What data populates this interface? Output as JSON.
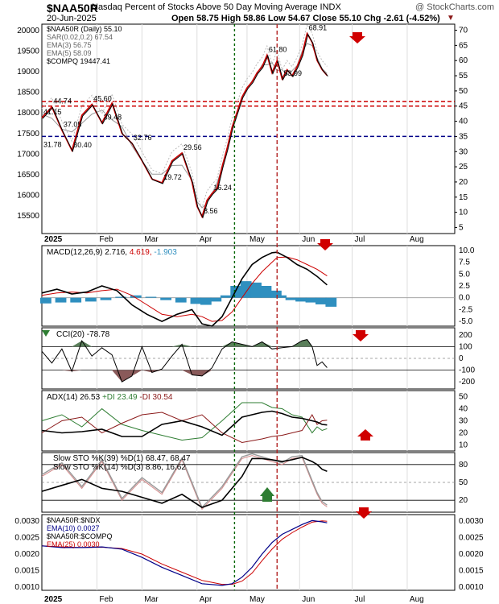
{
  "header": {
    "symbol": "$NAA50R",
    "description": "Nasdaq Percent of Stocks Above 50 Day Moving Average INDX",
    "watermark": "@ StockCharts.com",
    "date": "20-Jun-2025",
    "ohlc_text": "Open 58.75  High 58.86  Low 54.67  Close 55.10  Chg -2.61 (-4.52%)",
    "chg_arrow": "▼"
  },
  "x_axis": {
    "labels": [
      "2025",
      "Feb",
      "Mar",
      "Apr",
      "May",
      "Jun",
      "Jul",
      "Aug"
    ],
    "label_day": [
      0,
      22,
      40,
      62,
      82,
      103,
      124,
      146
    ],
    "total_days": 165
  },
  "vlines": [
    {
      "day": 77,
      "color": "#006400",
      "style": "dotted"
    },
    {
      "day": 94,
      "color": "#b22222",
      "style": "dashed"
    }
  ],
  "colors": {
    "red": "#cc0000",
    "black": "#000000",
    "grey": "#999999",
    "blue": "#000088",
    "teal": "#2f8fbf",
    "green": "#2e7d32",
    "maroon": "#8b1a1a"
  },
  "chart_data": [
    {
      "type": "line",
      "panel": "price",
      "series_name": "$NAA50R (Daily) 55.10",
      "legend": [
        "$NAA50R (Daily) 55.10",
        "SAR(0.02,0.2) 67.54",
        "EMA(3) 56.75",
        "EMA(5) 58.09",
        "$COMPQ 19447.41"
      ],
      "y_left_ticks": [
        "20000",
        "19500",
        "19000",
        "18500",
        "18000",
        "17500",
        "17000",
        "16500",
        "16000",
        "15500"
      ],
      "y_right_ticks": [
        "70",
        "65",
        "60",
        "55",
        "50",
        "45",
        "40",
        "35",
        "30",
        "25",
        "20",
        "15",
        "10",
        "5"
      ],
      "ylim": [
        3,
        72
      ],
      "x": [
        0,
        4,
        8,
        12,
        16,
        20,
        24,
        28,
        32,
        36,
        40,
        44,
        48,
        52,
        56,
        60,
        62,
        64,
        66,
        68,
        70,
        72,
        74,
        76,
        78,
        80,
        82,
        84,
        86,
        88,
        90,
        92,
        94,
        96,
        98,
        100,
        102,
        104,
        106,
        108,
        110,
        112,
        114
      ],
      "y": [
        41.15,
        44.74,
        37.05,
        30.4,
        42,
        45.6,
        39.48,
        46,
        36,
        32.76,
        27,
        21,
        19.72,
        27,
        29.56,
        20,
        12,
        8.56,
        14,
        16.24,
        18,
        25,
        31,
        38,
        43,
        48,
        51,
        53,
        56,
        58,
        61.8,
        56,
        60,
        53.99,
        57,
        55,
        58,
        62,
        68.91,
        66,
        60,
        57,
        55.1
      ],
      "hlines": [
        {
          "value": 46.5,
          "color": "#cc0000"
        },
        {
          "value": 45,
          "color": "#cc0000"
        },
        {
          "value": 35,
          "color": "#000088"
        }
      ],
      "annotations": [
        {
          "text": "41.15",
          "x": 0,
          "y": 41.15
        },
        {
          "text": "44.74",
          "x": 4,
          "y": 44.74
        },
        {
          "text": "37.05",
          "x": 8,
          "y": 37.05
        },
        {
          "text": "31.78",
          "x": 0,
          "y": 30.5
        },
        {
          "text": "30.40",
          "x": 12,
          "y": 30.4
        },
        {
          "text": "45.60",
          "x": 20,
          "y": 45.6
        },
        {
          "text": "39.48",
          "x": 24,
          "y": 39.48
        },
        {
          "text": "32.76",
          "x": 36,
          "y": 32.76
        },
        {
          "text": "29.56",
          "x": 56,
          "y": 29.56
        },
        {
          "text": "19.72",
          "x": 48,
          "y": 19.72
        },
        {
          "text": "8.56",
          "x": 64,
          "y": 8.56
        },
        {
          "text": "16.24",
          "x": 68,
          "y": 16.24
        },
        {
          "text": "61.80",
          "x": 90,
          "y": 61.8
        },
        {
          "text": "53.99",
          "x": 96,
          "y": 53.99
        },
        {
          "text": "68.91",
          "x": 106,
          "y": 68.91
        }
      ]
    },
    {
      "type": "line",
      "panel": "macd",
      "legend": [
        "MACD(12,26,9) 2.716",
        "4.619",
        "-1.903"
      ],
      "y_right_ticks": [
        "10.0",
        "7.5",
        "5.0",
        "2.5",
        "0.0",
        "-2.5",
        "-5.0"
      ],
      "ylim": [
        -6,
        11
      ],
      "x": [
        0,
        6,
        12,
        18,
        24,
        30,
        36,
        42,
        48,
        54,
        60,
        64,
        68,
        72,
        76,
        80,
        84,
        88,
        92,
        94,
        98,
        102,
        106,
        110,
        114
      ],
      "macd": [
        1,
        1.8,
        0.8,
        1.2,
        2.5,
        1.5,
        -1.5,
        -3.5,
        -5,
        -3.5,
        -2.5,
        -5.5,
        -6,
        -4,
        0,
        4,
        7,
        8.5,
        9.5,
        9.6,
        8.5,
        7,
        6,
        4.5,
        2.7
      ],
      "signal": [
        0.5,
        1,
        1.2,
        1,
        1.5,
        1.8,
        0.5,
        -1.5,
        -3.5,
        -4,
        -3.5,
        -4,
        -5,
        -4.8,
        -3,
        0,
        3,
        5.5,
        7.5,
        8.5,
        8.6,
        8,
        7,
        6,
        4.6
      ],
      "histogram": [
        -1.2,
        -1,
        -1,
        -0.8,
        -0.5,
        0.2,
        0.5,
        0.2,
        -0.5,
        -1,
        -1.3,
        -1.5,
        -0.8,
        0.5,
        2.5,
        3.5,
        3.2,
        2.5,
        1.5,
        0.5,
        -0.5,
        -0.8,
        -1,
        -1.4,
        -1.9
      ]
    },
    {
      "type": "area",
      "panel": "cci",
      "legend": [
        "CCI(20) -78.78"
      ],
      "y_right_ticks": [
        "200",
        "100",
        "0",
        "-100",
        "-200"
      ],
      "ylim": [
        -260,
        260
      ],
      "x": [
        0,
        4,
        8,
        12,
        16,
        20,
        24,
        28,
        32,
        36,
        40,
        44,
        48,
        52,
        56,
        60,
        64,
        68,
        72,
        76,
        80,
        84,
        88,
        92,
        96,
        100,
        104,
        106,
        108,
        110,
        112,
        114
      ],
      "y": [
        60,
        -40,
        80,
        -110,
        150,
        20,
        90,
        30,
        -200,
        -150,
        100,
        -120,
        -90,
        20,
        120,
        -140,
        -150,
        -80,
        80,
        140,
        120,
        100,
        140,
        80,
        90,
        100,
        150,
        160,
        100,
        -60,
        -30,
        -78.78
      ]
    },
    {
      "type": "line",
      "panel": "adx",
      "legend": [
        "ADX(14) 26.53",
        "+DI 23.49",
        "-DI 30.54"
      ],
      "y_right_ticks": [
        "50",
        "40",
        "30",
        "20",
        "10"
      ],
      "ylim": [
        5,
        55
      ],
      "x": [
        0,
        8,
        16,
        24,
        32,
        40,
        48,
        56,
        64,
        72,
        80,
        88,
        92,
        96,
        100,
        104,
        108,
        110,
        112,
        114
      ],
      "adx": [
        22,
        20,
        21,
        23,
        17,
        17,
        27,
        30,
        25,
        18,
        33,
        37,
        38,
        36,
        33,
        32,
        30,
        29,
        27,
        26.53
      ],
      "plus_di": [
        30,
        35,
        25,
        40,
        27,
        22,
        18,
        14,
        16,
        30,
        45,
        45,
        41,
        40,
        35,
        33,
        20,
        25,
        22,
        23.49
      ],
      "minus_di": [
        20,
        30,
        33,
        20,
        28,
        35,
        37,
        30,
        35,
        20,
        12,
        15,
        17,
        18,
        20,
        22,
        35,
        27,
        30,
        30.54
      ]
    },
    {
      "type": "line",
      "panel": "sto",
      "legend": [
        "Slow STO %K(39) %D(1) 68.47, 68.47",
        "Slow STO %K(14) %D(3) 8.86, 16.62"
      ],
      "y_right_ticks": [
        "80",
        "50",
        "20"
      ],
      "ylim": [
        0,
        100
      ],
      "x": [
        0,
        8,
        16,
        24,
        32,
        40,
        48,
        56,
        64,
        72,
        80,
        84,
        88,
        92,
        96,
        100,
        104,
        108,
        110,
        112,
        114
      ],
      "sto39": [
        35,
        45,
        55,
        40,
        35,
        25,
        15,
        30,
        8,
        20,
        60,
        90,
        90,
        88,
        85,
        88,
        92,
        85,
        80,
        72,
        68.47
      ],
      "sto14": [
        60,
        80,
        40,
        85,
        20,
        55,
        30,
        88,
        5,
        40,
        90,
        95,
        90,
        85,
        80,
        90,
        92,
        50,
        30,
        15,
        8.86
      ]
    },
    {
      "type": "line",
      "panel": "ratio",
      "legend": [
        "$NAA50R:$NDX",
        "EMA(10) 0.0027",
        "$NAA50R:$COMPQ",
        "EMA(25) 0.0030"
      ],
      "y_left_ticks": [
        "0.0030",
        "0.0025",
        "0.0020",
        "0.0015",
        "0.0010"
      ],
      "y_right_ticks": [
        "0.0030",
        "0.0025",
        "0.0020",
        "0.0015",
        "0.0010"
      ],
      "ylim": [
        0.0009,
        0.0032
      ],
      "x": [
        0,
        8,
        16,
        24,
        32,
        40,
        48,
        56,
        64,
        72,
        76,
        80,
        84,
        88,
        92,
        96,
        100,
        104,
        108,
        112,
        114
      ],
      "y": [
        0.00225,
        0.0022,
        0.0022,
        0.00222,
        0.00215,
        0.0019,
        0.0016,
        0.00135,
        0.0011,
        0.00105,
        0.0011,
        0.0013,
        0.0016,
        0.002,
        0.00235,
        0.0026,
        0.00275,
        0.0029,
        0.00302,
        0.00298,
        0.00295
      ],
      "ema": [
        0.00225,
        0.00222,
        0.0022,
        0.00221,
        0.00217,
        0.002,
        0.0017,
        0.00145,
        0.0012,
        0.00108,
        0.00108,
        0.00118,
        0.00142,
        0.0018,
        0.00215,
        0.00245,
        0.00265,
        0.00282,
        0.00297,
        0.00301,
        0.003
      ]
    }
  ]
}
